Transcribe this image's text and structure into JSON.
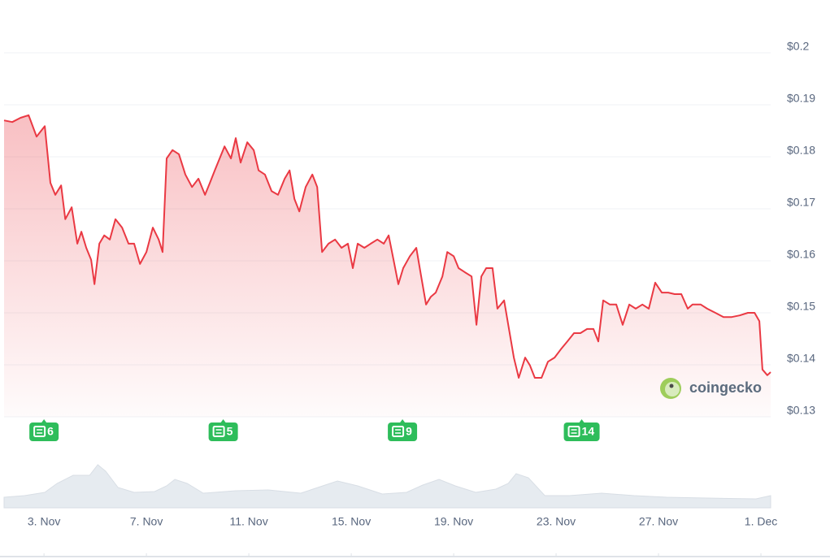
{
  "chart_data": {
    "type": "line",
    "color": "#ea3943",
    "xlim": [
      1.44,
      31.38
    ],
    "ylim": [
      0.13,
      0.2
    ],
    "xticks": [
      {
        "value": 3,
        "label": "3. Nov"
      },
      {
        "value": 7,
        "label": "7. Nov"
      },
      {
        "value": 11,
        "label": "11. Nov"
      },
      {
        "value": 15,
        "label": "15. Nov"
      },
      {
        "value": 19,
        "label": "19. Nov"
      },
      {
        "value": 23,
        "label": "23. Nov"
      },
      {
        "value": 27,
        "label": "27. Nov"
      },
      {
        "value": 31,
        "label": "1. Dec"
      }
    ],
    "yticks": [
      {
        "value": 0.2,
        "label": "$0.2"
      },
      {
        "value": 0.19,
        "label": "$0.19"
      },
      {
        "value": 0.18,
        "label": "$0.18"
      },
      {
        "value": 0.17,
        "label": "$0.17"
      },
      {
        "value": 0.16,
        "label": "$0.16"
      },
      {
        "value": 0.15,
        "label": "$0.15"
      },
      {
        "value": 0.14,
        "label": "$0.14"
      },
      {
        "value": 0.13,
        "label": "$0.13"
      }
    ],
    "grid": true,
    "x": [
      1.44,
      1.76,
      2.08,
      2.4,
      2.71,
      3.03,
      3.25,
      3.44,
      3.67,
      3.83,
      4.08,
      4.3,
      4.46,
      4.65,
      4.84,
      4.97,
      5.16,
      5.35,
      5.57,
      5.79,
      6.05,
      6.3,
      6.52,
      6.75,
      7.0,
      7.25,
      7.48,
      7.63,
      7.79,
      8.02,
      8.27,
      8.52,
      8.78,
      9.03,
      9.29,
      9.48,
      9.67,
      9.86,
      10.05,
      10.3,
      10.49,
      10.68,
      10.94,
      11.19,
      11.38,
      11.63,
      11.89,
      12.14,
      12.4,
      12.59,
      12.78,
      12.97,
      13.22,
      13.48,
      13.67,
      13.86,
      14.11,
      14.37,
      14.62,
      14.87,
      15.06,
      15.25,
      15.51,
      15.76,
      16.02,
      16.27,
      16.46,
      16.65,
      16.84,
      17.03,
      17.29,
      17.54,
      17.73,
      17.92,
      18.11,
      18.3,
      18.56,
      18.75,
      19.0,
      19.19,
      19.44,
      19.7,
      19.89,
      20.08,
      20.27,
      20.52,
      20.71,
      20.97,
      21.16,
      21.35,
      21.54,
      21.79,
      21.98,
      22.17,
      22.43,
      22.68,
      22.94,
      23.19,
      23.44,
      23.7,
      23.95,
      24.21,
      24.46,
      24.65,
      24.84,
      25.1,
      25.35,
      25.6,
      25.86,
      26.11,
      26.37,
      26.62,
      26.87,
      27.13,
      27.38,
      27.63,
      27.89,
      28.14,
      28.33,
      28.65,
      28.9,
      29.22,
      29.54,
      29.86,
      30.17,
      30.49,
      30.75,
      30.94,
      31.06,
      31.25,
      31.38
    ],
    "values": [
      0.1859,
      0.1856,
      0.1864,
      0.1869,
      0.1828,
      0.1848,
      0.1739,
      0.1716,
      0.1734,
      0.1669,
      0.1692,
      0.1622,
      0.1645,
      0.1614,
      0.1591,
      0.1544,
      0.1622,
      0.1638,
      0.163,
      0.1669,
      0.1653,
      0.1622,
      0.1622,
      0.1583,
      0.1606,
      0.1653,
      0.163,
      0.1606,
      0.1786,
      0.1802,
      0.1794,
      0.1755,
      0.1731,
      0.1747,
      0.1716,
      0.1739,
      0.1763,
      0.1786,
      0.1809,
      0.1786,
      0.1825,
      0.1778,
      0.1817,
      0.1802,
      0.1763,
      0.1755,
      0.1723,
      0.1716,
      0.1747,
      0.1763,
      0.1708,
      0.1684,
      0.1731,
      0.1755,
      0.1731,
      0.1606,
      0.1622,
      0.163,
      0.1614,
      0.1622,
      0.1575,
      0.1622,
      0.1614,
      0.1622,
      0.163,
      0.1622,
      0.1638,
      0.1591,
      0.1544,
      0.1575,
      0.1598,
      0.1614,
      0.1559,
      0.1505,
      0.152,
      0.1528,
      0.1559,
      0.1606,
      0.1598,
      0.1575,
      0.1567,
      0.1559,
      0.1466,
      0.1559,
      0.1575,
      0.1575,
      0.1497,
      0.1513,
      0.1458,
      0.1403,
      0.1364,
      0.1403,
      0.1388,
      0.1364,
      0.1364,
      0.1395,
      0.1403,
      0.1419,
      0.1434,
      0.145,
      0.145,
      0.1458,
      0.1458,
      0.1434,
      0.1513,
      0.1505,
      0.1505,
      0.1466,
      0.1505,
      0.1497,
      0.1505,
      0.1497,
      0.1547,
      0.1528,
      0.1528,
      0.1525,
      0.1525,
      0.1497,
      0.1505,
      0.1505,
      0.1497,
      0.1489,
      0.1481,
      0.1481,
      0.1484,
      0.1489,
      0.1489,
      0.1473,
      0.138,
      0.1369,
      0.1375
    ],
    "volume": {
      "color": "#e6ebf0",
      "x": [
        1.44,
        2.24,
        3.03,
        3.51,
        4.14,
        4.78,
        5.1,
        5.41,
        5.89,
        6.52,
        7.32,
        7.79,
        8.11,
        8.59,
        9.22,
        10.49,
        11.76,
        13.03,
        13.98,
        14.46,
        15.25,
        16.21,
        17.16,
        17.79,
        18.43,
        19.06,
        19.86,
        20.65,
        21.13,
        21.44,
        21.92,
        22.56,
        23.51,
        24.78,
        26.05,
        27.32,
        28.9,
        30.81,
        31.38
      ],
      "values": [
        13,
        15,
        19,
        30,
        40,
        40,
        53,
        45,
        25,
        19,
        20,
        27,
        35,
        30,
        18,
        21,
        22,
        18,
        28,
        33,
        27,
        17,
        19,
        28,
        35,
        27,
        19,
        23,
        30,
        42,
        37,
        15,
        15,
        18,
        15,
        13,
        12,
        11,
        15
      ]
    },
    "news": [
      {
        "x": 3,
        "count": 6
      },
      {
        "x": 10,
        "count": 5
      },
      {
        "x": 17,
        "count": 9
      },
      {
        "x": 24,
        "count": 14
      }
    ],
    "watermark": "coingecko"
  }
}
